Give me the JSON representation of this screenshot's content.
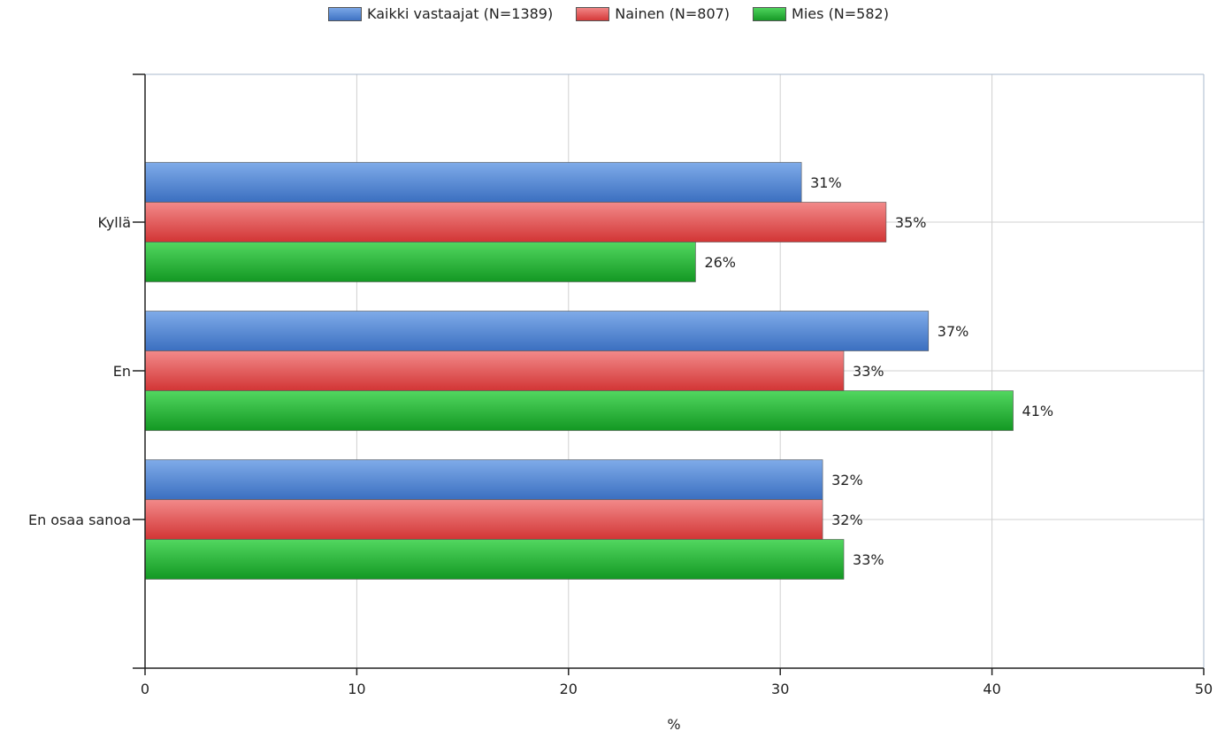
{
  "chart_data": {
    "type": "bar",
    "orientation": "horizontal",
    "categories": [
      "Kyllä",
      "En",
      "En osaa sanoa"
    ],
    "series": [
      {
        "name": "Kaikki vastaajat (N=1389)",
        "values": [
          31,
          37,
          32
        ],
        "labels": [
          "31%",
          "37%",
          "32%"
        ],
        "color": "#4a7fd0"
      },
      {
        "name": "Nainen (N=807)",
        "values": [
          35,
          33,
          32
        ],
        "labels": [
          "35%",
          "33%",
          "32%"
        ],
        "color": "#e04b4b"
      },
      {
        "name": "Mies (N=582)",
        "values": [
          26,
          41,
          33
        ],
        "labels": [
          "26%",
          "41%",
          "33%"
        ],
        "color": "#2cae3a"
      }
    ],
    "xlabel": "%",
    "xlim": [
      0,
      50
    ],
    "xticks": [
      0,
      10,
      20,
      30,
      40,
      50
    ],
    "grid": true,
    "legend_position": "top"
  }
}
